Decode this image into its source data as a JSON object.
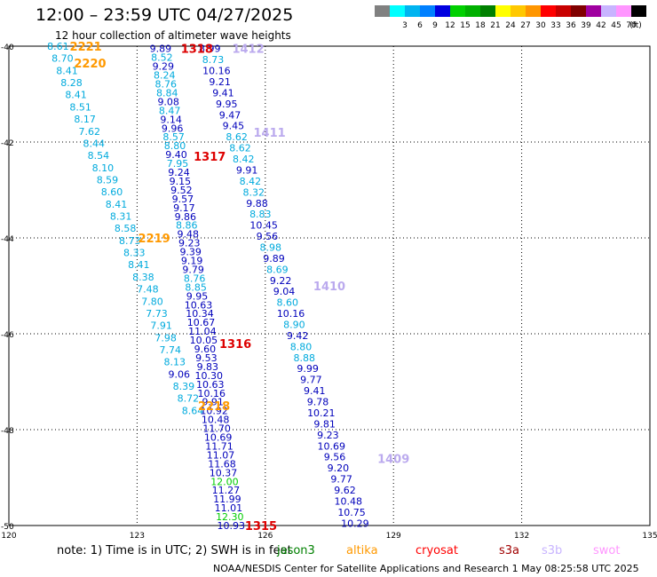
{
  "title": "12:00 – 23:59 UTC 04/27/2025",
  "subtitle": "12 hour collection of altimeter wave heights",
  "legend": {
    "swatches": [
      {
        "color": "#808080",
        "label": ""
      },
      {
        "color": "#00ffff",
        "label": "3"
      },
      {
        "color": "#00b4f0",
        "label": "6"
      },
      {
        "color": "#0080ff",
        "label": "9"
      },
      {
        "color": "#0000e0",
        "label": "12"
      },
      {
        "color": "#00d000",
        "label": "15"
      },
      {
        "color": "#00b000",
        "label": "18"
      },
      {
        "color": "#008000",
        "label": "21"
      },
      {
        "color": "#ffff00",
        "label": "24"
      },
      {
        "color": "#ffc800",
        "label": "27"
      },
      {
        "color": "#ff9600",
        "label": "30"
      },
      {
        "color": "#ff0000",
        "label": "33"
      },
      {
        "color": "#c80000",
        "label": "36"
      },
      {
        "color": "#800000",
        "label": "39"
      },
      {
        "color": "#a000a0",
        "label": "42"
      },
      {
        "color": "#c8b4ff",
        "label": "45"
      },
      {
        "color": "#ff96ff",
        "label": "70"
      },
      {
        "color": "#000000",
        "label": ""
      }
    ],
    "unit_label": "(ft)"
  },
  "map": {
    "lon_min": 120,
    "lon_max": 135,
    "lat_min": -50,
    "lat_max": -40,
    "x_ticks": [
      {
        "value": 120,
        "label": "120"
      },
      {
        "value": 123,
        "label": "123"
      },
      {
        "value": 126,
        "label": "126"
      },
      {
        "value": 129,
        "label": "129"
      },
      {
        "value": 132,
        "label": "132"
      },
      {
        "value": 135,
        "label": "135"
      }
    ],
    "y_ticks": [
      {
        "value": -40,
        "label": "-40"
      },
      {
        "value": -42,
        "label": "-42"
      },
      {
        "value": -44,
        "label": "-44"
      },
      {
        "value": -46,
        "label": "-46"
      },
      {
        "value": -48,
        "label": "-48"
      },
      {
        "value": -50,
        "label": "-50"
      }
    ]
  },
  "color_classes": {
    "cyan": "#00aadd",
    "blue": "#0000bb",
    "green": "#00cc00",
    "red": "#dd0000",
    "orange": "#ff9900",
    "lav": "#bbaaee"
  },
  "track_labels": [
    {
      "lon": 121.8,
      "lat": -40.0,
      "text": "2221",
      "cls": "orange"
    },
    {
      "lon": 121.9,
      "lat": -40.35,
      "text": "2220",
      "cls": "orange"
    },
    {
      "lon": 123.4,
      "lat": -44.0,
      "text": "2219",
      "cls": "orange"
    },
    {
      "lon": 124.8,
      "lat": -47.5,
      "text": "2218",
      "cls": "orange"
    },
    {
      "lon": 124.4,
      "lat": -40.05,
      "text": "1318",
      "cls": "red"
    },
    {
      "lon": 124.7,
      "lat": -42.3,
      "text": "1317",
      "cls": "red"
    },
    {
      "lon": 125.3,
      "lat": -46.2,
      "text": "1316",
      "cls": "red"
    },
    {
      "lon": 125.9,
      "lat": -50.0,
      "text": "1315",
      "cls": "red"
    },
    {
      "lon": 125.6,
      "lat": -40.05,
      "text": "1412",
      "cls": "lav"
    },
    {
      "lon": 126.1,
      "lat": -41.8,
      "text": "1411",
      "cls": "lav"
    },
    {
      "lon": 127.5,
      "lat": -45.0,
      "text": "1410",
      "cls": "lav"
    },
    {
      "lon": 129.0,
      "lat": -48.6,
      "text": "1409",
      "cls": "lav"
    }
  ],
  "note": {
    "prefix": "note:  1) Time is in UTC;  2) SWH is in feet"
  },
  "satellites": [
    {
      "name": "jason3",
      "color": "#008000"
    },
    {
      "name": "altika",
      "color": "#ff9900"
    },
    {
      "name": "cryosat",
      "color": "#ff0000"
    },
    {
      "name": "s3a",
      "color": "#a00000"
    },
    {
      "name": "s3b",
      "color": "#c8b4ff"
    },
    {
      "name": "swot",
      "color": "#ff96ff"
    }
  ],
  "credit": "NOAA/NESDIS Center for Satellite Applications and Research     1 May 08:25:58 UTC 2025",
  "tracks": [
    {
      "name": "track-2221-2218",
      "lon_start": 121.15,
      "lat_start": -40.0,
      "lon_end": 124.3,
      "lat_end": -47.6,
      "values": [
        "8.61",
        "8.70",
        "8.41",
        "8.28",
        "8.41",
        "8.51",
        "8.17",
        "7.62",
        "8.44",
        "8.54",
        "8.10",
        "8.59",
        "8.60",
        "8.41",
        "8.31",
        "8.58",
        "8.73",
        "8.33",
        "8.41",
        "8.38",
        "7.48",
        "7.80",
        "7.73",
        "7.91",
        "7.98",
        "7.74",
        "8.13",
        "9.06",
        "8.39",
        "8.72",
        "8.64"
      ],
      "classes": [
        "cyan",
        "cyan",
        "cyan",
        "cyan",
        "cyan",
        "cyan",
        "cyan",
        "cyan",
        "cyan",
        "cyan",
        "cyan",
        "cyan",
        "cyan",
        "cyan",
        "cyan",
        "cyan",
        "cyan",
        "cyan",
        "cyan",
        "cyan",
        "cyan",
        "cyan",
        "cyan",
        "cyan",
        "cyan",
        "cyan",
        "cyan",
        "blue",
        "cyan",
        "cyan",
        "cyan"
      ]
    },
    {
      "name": "track-1318-1315",
      "lon_start": 123.55,
      "lat_start": -40.05,
      "lon_end": 125.2,
      "lat_end": -50.0,
      "values": [
        "9.89",
        "8.52",
        "9.29",
        "8.24",
        "8.76",
        "8.84",
        "9.08",
        "8.47",
        "9.14",
        "9.96",
        "8.57",
        "8.80",
        "9.40",
        "7.95",
        "9.24",
        "9.15",
        "9.52",
        "9.57",
        "9.17",
        "9.86",
        "8.86",
        "9.48",
        "9.23",
        "9.39",
        "9.19",
        "9.79",
        "8.76",
        "8.85",
        "9.95",
        "10.63",
        "10.34",
        "10.67",
        "11.04",
        "10.05",
        "9.60",
        "9.53",
        "9.83",
        "10.30",
        "10.63",
        "10.16",
        "9.91",
        "10.92",
        "10.48",
        "11.70",
        "10.69",
        "11.71",
        "11.07",
        "11.68",
        "10.37",
        "12.00",
        "11.27",
        "11.99",
        "11.01",
        "12.30",
        "10.93"
      ],
      "classes": [
        "blue",
        "cyan",
        "blue",
        "cyan",
        "cyan",
        "cyan",
        "blue",
        "cyan",
        "blue",
        "blue",
        "cyan",
        "cyan",
        "blue",
        "cyan",
        "blue",
        "blue",
        "blue",
        "blue",
        "blue",
        "blue",
        "cyan",
        "blue",
        "blue",
        "blue",
        "blue",
        "blue",
        "cyan",
        "cyan",
        "blue",
        "blue",
        "blue",
        "blue",
        "blue",
        "blue",
        "blue",
        "blue",
        "blue",
        "blue",
        "blue",
        "blue",
        "blue",
        "blue",
        "blue",
        "blue",
        "blue",
        "blue",
        "blue",
        "blue",
        "blue",
        "green",
        "blue",
        "blue",
        "blue",
        "green",
        "blue"
      ]
    },
    {
      "name": "track-1412-1409",
      "lon_start": 124.7,
      "lat_start": -40.05,
      "lon_end": 128.1,
      "lat_end": -49.95,
      "values": [
        "8.99",
        "8.73",
        "10.16",
        "9.21",
        "9.41",
        "9.95",
        "9.47",
        "9.45",
        "8.62",
        "8.62",
        "8.42",
        "9.91",
        "8.42",
        "8.32",
        "9.88",
        "8.83",
        "10.45",
        "9.56",
        "8.98",
        "9.89",
        "8.69",
        "9.22",
        "9.04",
        "8.60",
        "10.16",
        "8.90",
        "9.42",
        "8.80",
        "8.88",
        "9.99",
        "9.77",
        "9.41",
        "9.78",
        "10.21",
        "9.81",
        "9.23",
        "10.69",
        "9.56",
        "9.20",
        "9.77",
        "9.62",
        "10.48",
        "10.75",
        "10.29"
      ],
      "classes": [
        "blue",
        "cyan",
        "blue",
        "blue",
        "blue",
        "blue",
        "blue",
        "blue",
        "cyan",
        "cyan",
        "cyan",
        "blue",
        "cyan",
        "cyan",
        "blue",
        "cyan",
        "blue",
        "blue",
        "cyan",
        "blue",
        "cyan",
        "blue",
        "blue",
        "cyan",
        "blue",
        "cyan",
        "blue",
        "cyan",
        "cyan",
        "blue",
        "blue",
        "blue",
        "blue",
        "blue",
        "blue",
        "blue",
        "blue",
        "blue",
        "blue",
        "blue",
        "blue",
        "blue",
        "blue",
        "blue"
      ]
    }
  ]
}
